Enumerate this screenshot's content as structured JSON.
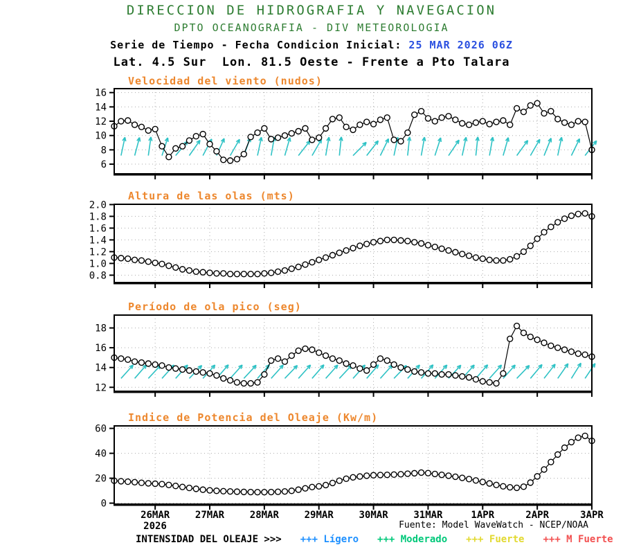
{
  "header": {
    "line1": "DIRECCION DE HIDROGRAFIA Y NAVEGACION",
    "line2": "DPTO OCEANOGRAFIA - DIV METEOROLOGIA",
    "line3_label": "Serie de Tiempo - Fecha Condicion Inicial: ",
    "line3_value": "25 MAR 2026 06Z",
    "line4": "Lat. 4.5 Sur  Lon. 81.5 Oeste - Frente a Pto Talara"
  },
  "footer": {
    "source": "Fuente: Model WaveWatch - NCEP/NOAA",
    "year_label": "2026",
    "legend_title": "INTENSIDAD DEL OLEAJE >>>",
    "legend_items": [
      {
        "label": "+++ Lígero",
        "color": "#1E90FF"
      },
      {
        "label": "+++ Moderado",
        "color": "#00C87A"
      },
      {
        "label": "+++ Fuerte",
        "color": "#E2D930"
      },
      {
        "label": "+++ M Fuerte",
        "color": "#F25050"
      }
    ]
  },
  "colors": {
    "title_green": "#2E7D32",
    "panel_title_orange": "#ED872D",
    "init_date_blue": "#2B50E0",
    "direction_arrow_cyan": "#2FC2C5",
    "grid_gray": "#AAAAAA",
    "series_black": "#000000"
  },
  "chart_data": {
    "type": "line",
    "x": {
      "tick_labels": [
        "26MAR",
        "27MAR",
        "28MAR",
        "29MAR",
        "30MAR",
        "31MAR",
        "1APR",
        "2APR",
        "3APR"
      ],
      "year_label": "2026",
      "points_per_day": 8,
      "n_points": 71
    },
    "panels": [
      {
        "title": "Velocidad del viento (nudos)",
        "ylim": [
          6,
          16
        ],
        "ytick_values": [
          6,
          8,
          10,
          12,
          14,
          16
        ],
        "ytick_labels": [
          "6",
          "8",
          "10",
          "12",
          "14",
          "16"
        ],
        "values": [
          11.3,
          12.0,
          12.1,
          11.5,
          11.2,
          10.7,
          10.9,
          8.5,
          7.0,
          8.2,
          8.5,
          9.3,
          9.9,
          10.2,
          8.8,
          7.8,
          6.6,
          6.5,
          6.7,
          7.4,
          9.8,
          10.4,
          11.0,
          9.5,
          9.7,
          10.0,
          10.3,
          10.6,
          11.0,
          9.4,
          9.7,
          11.0,
          12.3,
          12.5,
          11.2,
          10.8,
          11.5,
          11.9,
          11.6,
          12.2,
          12.5,
          9.4,
          9.2,
          10.4,
          12.9,
          13.4,
          12.4,
          12.0,
          12.5,
          12.7,
          12.2,
          11.7,
          11.5,
          11.8,
          12.0,
          11.6,
          11.9,
          12.1,
          11.5,
          13.8,
          13.3,
          14.2,
          14.5,
          13.1,
          13.4,
          12.3,
          11.8,
          11.5,
          12.0,
          11.9,
          8.0
        ],
        "direction_arrows_deg": [
          12,
          15,
          8,
          18,
          40,
          35,
          28,
          24,
          30,
          20,
          12,
          10,
          16,
          38,
          30,
          10,
          6,
          45,
          38,
          26,
          12,
          6,
          10,
          18,
          34,
          12,
          6,
          10,
          16,
          36,
          30,
          22,
          12,
          26,
          38
        ]
      },
      {
        "title": "Altura de las olas (mts)",
        "ylim": [
          0.8,
          2.0
        ],
        "ytick_values": [
          0.8,
          1.0,
          1.2,
          1.4,
          1.6,
          1.8,
          2.0
        ],
        "ytick_labels": [
          "0.8",
          "1.0",
          "1.2",
          "1.4",
          "1.6",
          "1.8",
          "2.0"
        ],
        "values": [
          1.1,
          1.09,
          1.08,
          1.06,
          1.05,
          1.03,
          1.01,
          0.99,
          0.96,
          0.93,
          0.9,
          0.88,
          0.86,
          0.85,
          0.84,
          0.83,
          0.83,
          0.82,
          0.82,
          0.82,
          0.82,
          0.82,
          0.83,
          0.84,
          0.86,
          0.88,
          0.91,
          0.94,
          0.98,
          1.02,
          1.06,
          1.1,
          1.14,
          1.18,
          1.22,
          1.26,
          1.3,
          1.33,
          1.36,
          1.38,
          1.4,
          1.4,
          1.39,
          1.38,
          1.36,
          1.34,
          1.31,
          1.28,
          1.25,
          1.22,
          1.19,
          1.16,
          1.13,
          1.1,
          1.08,
          1.06,
          1.05,
          1.05,
          1.07,
          1.12,
          1.2,
          1.3,
          1.42,
          1.53,
          1.62,
          1.7,
          1.76,
          1.81,
          1.84,
          1.85,
          1.8
        ]
      },
      {
        "title": "Período de ola pico (seg)",
        "ylim": [
          12,
          18
        ],
        "ytick_values": [
          12,
          14,
          16,
          18
        ],
        "ytick_labels": [
          "12",
          "14",
          "16",
          "18"
        ],
        "values": [
          15.0,
          14.9,
          14.8,
          14.6,
          14.5,
          14.4,
          14.3,
          14.2,
          14.0,
          13.9,
          13.8,
          13.7,
          13.6,
          13.5,
          13.4,
          13.2,
          12.9,
          12.7,
          12.5,
          12.4,
          12.4,
          12.5,
          13.3,
          14.7,
          14.9,
          14.6,
          15.2,
          15.7,
          15.9,
          15.8,
          15.5,
          15.2,
          14.9,
          14.7,
          14.4,
          14.2,
          13.9,
          13.7,
          14.3,
          14.9,
          14.7,
          14.3,
          14.0,
          13.8,
          13.6,
          13.5,
          13.4,
          13.4,
          13.3,
          13.3,
          13.2,
          13.1,
          13.0,
          12.8,
          12.6,
          12.5,
          12.4,
          13.4,
          16.9,
          18.2,
          17.5,
          17.1,
          16.8,
          16.5,
          16.2,
          16.0,
          15.8,
          15.6,
          15.4,
          15.3,
          15.1
        ],
        "direction_arrows_deg": [
          42,
          41,
          43,
          42,
          42,
          44,
          42,
          41,
          42,
          43,
          41,
          42,
          44,
          42,
          41,
          42,
          43,
          42,
          41,
          42,
          44,
          42,
          41,
          42,
          43,
          42,
          41,
          42,
          42,
          44,
          40,
          38,
          35,
          32,
          34
        ]
      },
      {
        "title": "Indice de Potencia del Oleaje (Kw/m)",
        "ylim": [
          0,
          60
        ],
        "ytick_values": [
          0,
          20,
          40,
          60
        ],
        "ytick_labels": [
          "0",
          "20",
          "40",
          "60"
        ],
        "values": [
          18.0,
          17.6,
          17.2,
          16.8,
          16.3,
          15.9,
          15.6,
          15.3,
          14.6,
          13.8,
          13.0,
          12.2,
          11.5,
          10.8,
          10.3,
          9.9,
          9.6,
          9.4,
          9.2,
          9.0,
          8.9,
          8.8,
          8.8,
          8.9,
          9.1,
          9.4,
          9.9,
          10.8,
          11.9,
          12.9,
          13.5,
          14.5,
          16.2,
          18.0,
          19.6,
          20.7,
          21.4,
          22.0,
          22.4,
          22.6,
          22.7,
          22.9,
          23.2,
          23.6,
          24.0,
          24.5,
          24.1,
          23.4,
          22.7,
          22.0,
          21.2,
          20.3,
          19.3,
          18.2,
          17.0,
          15.8,
          14.6,
          13.5,
          12.7,
          12.3,
          13.2,
          16.5,
          21.5,
          27.0,
          33.0,
          39.0,
          44.5,
          49.0,
          52.5,
          54.0,
          50.0
        ]
      }
    ]
  }
}
